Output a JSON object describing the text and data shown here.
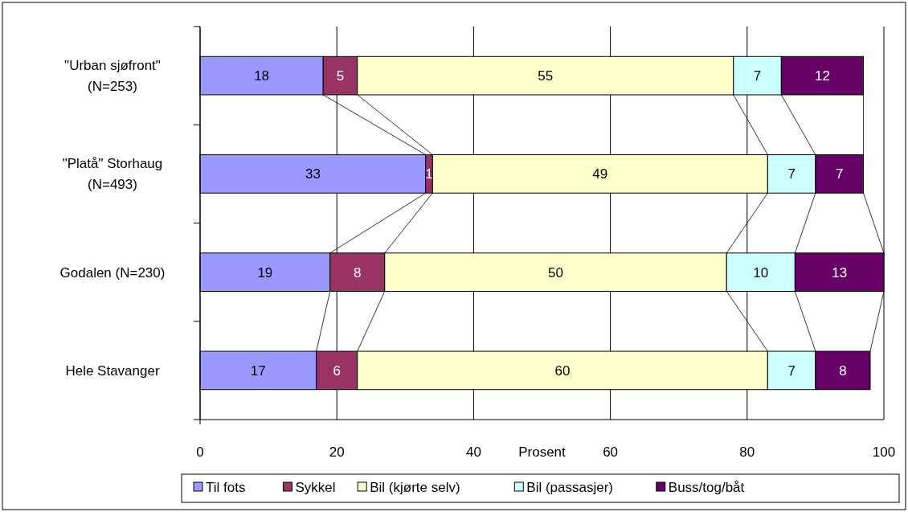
{
  "chart_data": {
    "type": "bar",
    "orientation": "horizontal",
    "stacked": true,
    "categories": [
      "\"Urban sjøfront\"\n(N=253)",
      "\"Platå\" Storhaug\n(N=493)",
      "Godalen (N=230)",
      "Hele Stavanger"
    ],
    "series": [
      {
        "name": "Til fots",
        "color": "#9999ff",
        "values": [
          18,
          33,
          19,
          17
        ]
      },
      {
        "name": "Sykkel",
        "color": "#993366",
        "values": [
          5,
          1,
          8,
          6
        ]
      },
      {
        "name": "Bil (kjørte selv)",
        "color": "#ffffcc",
        "values": [
          55,
          49,
          50,
          60
        ]
      },
      {
        "name": "Bil (passasjer)",
        "color": "#ccffff",
        "values": [
          7,
          7,
          10,
          7
        ]
      },
      {
        "name": "Buss/tog/båt",
        "color": "#660066",
        "values": [
          12,
          7,
          13,
          8
        ]
      }
    ],
    "xlabel": "Prosent",
    "xlim": [
      0,
      100
    ],
    "xticks": [
      0,
      20,
      40,
      60,
      80,
      100
    ],
    "grid": "x",
    "legend": "bottom",
    "data_labels": true
  }
}
